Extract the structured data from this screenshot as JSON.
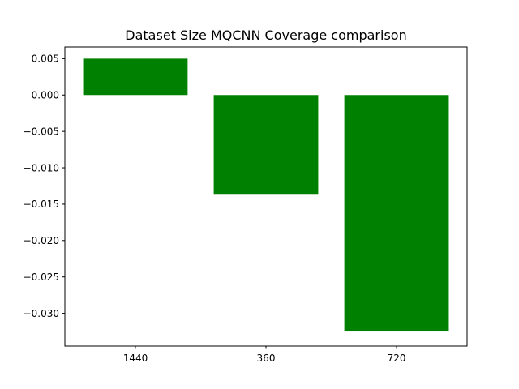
{
  "chart_data": {
    "type": "bar",
    "title": "Dataset Size MQCNN Coverage comparison",
    "xlabel": "",
    "ylabel": "",
    "categories": [
      "1440",
      "360",
      "720"
    ],
    "values": [
      0.005,
      -0.0137,
      -0.0325
    ],
    "ylim": [
      -0.0345,
      0.0066
    ],
    "yticks": [
      0.005,
      0.0,
      -0.005,
      -0.01,
      -0.015,
      -0.02,
      -0.025,
      -0.03
    ],
    "ytick_labels": [
      "0.005",
      "0.000",
      "−0.005",
      "−0.010",
      "−0.015",
      "−0.020",
      "−0.025",
      "−0.030"
    ],
    "bar_color": "#008000",
    "grid": false,
    "legend": "none"
  }
}
